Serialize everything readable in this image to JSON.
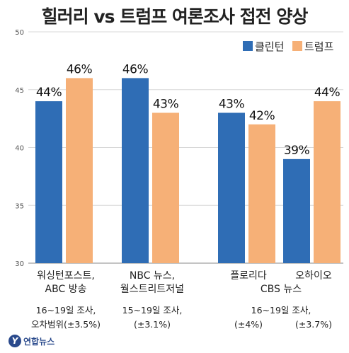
{
  "chart_data": {
    "type": "bar",
    "title": "힐러리 vs 트럼프 여론조사 접전 양상",
    "ylim": [
      30,
      50
    ],
    "yticks": [
      30,
      35,
      40,
      45,
      50
    ],
    "legend_position": "top-right",
    "series": [
      {
        "name": "클린턴",
        "color": "#2f6db5",
        "values": [
          44,
          46,
          43,
          39
        ]
      },
      {
        "name": "트럼프",
        "color": "#f6b077",
        "values": [
          46,
          43,
          42,
          44
        ]
      }
    ],
    "value_labels": [
      [
        "44%",
        "46%",
        "43%",
        "39%"
      ],
      [
        "46%",
        "43%",
        "42%",
        "44%"
      ]
    ],
    "categories": [
      [
        "워싱턴포스트,",
        "ABC 방송"
      ],
      [
        "NBC 뉴스,",
        "월스트리트저널"
      ],
      [
        "플로리다"
      ],
      [
        "오하이오"
      ]
    ],
    "notes": [
      [
        "16~19일 조사,",
        "오차범위(±3.5%)"
      ],
      [
        "15~19일 조사,",
        "(±3.1%)"
      ],
      [
        "CBS 뉴스",
        "16~19일 조사,",
        "(±4%)",
        "(±3.7%)"
      ]
    ]
  },
  "source": {
    "logo_text": "연합뉴스",
    "logo_mark": "Y"
  }
}
